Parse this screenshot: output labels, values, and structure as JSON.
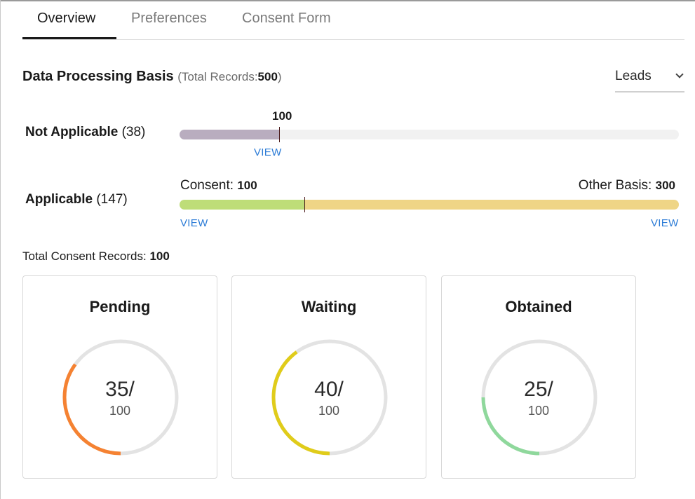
{
  "tabs": [
    {
      "label": "Overview",
      "active": true
    },
    {
      "label": "Preferences",
      "active": false
    },
    {
      "label": "Consent Form",
      "active": false
    }
  ],
  "section": {
    "title": "Data Processing Basis",
    "total_prefix": "(Total Records:",
    "total_value": "500",
    "total_suffix": ")"
  },
  "module_select": {
    "value": "Leads"
  },
  "not_applicable": {
    "label": "Not Applicable",
    "count": "(38)",
    "marker_value": "100",
    "fill_fraction": 0.2,
    "fill_color": "#b9adbf",
    "view_label": "VIEW"
  },
  "applicable": {
    "label": "Applicable",
    "count": "(147)",
    "consent_label": "Consent:",
    "consent_value": "100",
    "other_label": "Other Basis:",
    "other_value": "300",
    "consent_fraction": 0.25,
    "consent_color": "#bedd78",
    "other_color": "#efd586",
    "view_left": "VIEW",
    "view_right": "VIEW"
  },
  "consent_total": {
    "label": "Total Consent Records:",
    "value": "100"
  },
  "status_cards": [
    {
      "title": "Pending",
      "value": "35/",
      "denominator": "100",
      "fraction": 0.35,
      "color": "#f58232"
    },
    {
      "title": "Waiting",
      "value": "40/",
      "denominator": "100",
      "fraction": 0.4,
      "color": "#e0cc1a"
    },
    {
      "title": "Obtained",
      "value": "25/",
      "denominator": "100",
      "fraction": 0.25,
      "color": "#8fd89c"
    }
  ],
  "colors": {
    "accent_link": "#2b7bd6",
    "track": "#e3e3e3"
  }
}
